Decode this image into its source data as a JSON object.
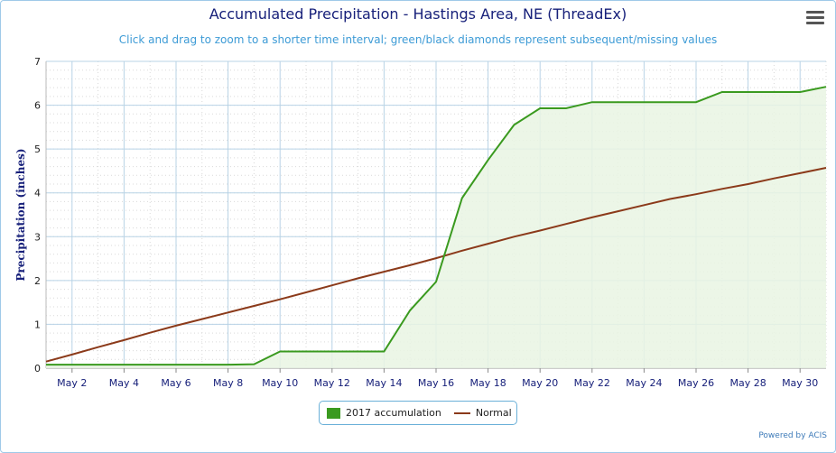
{
  "title": "Accumulated Precipitation - Hastings Area, NE (ThreadEx)",
  "subtitle": "Click and drag to zoom to a shorter time interval; green/black diamonds represent subsequent/missing values",
  "credit": "Powered by ACIS",
  "menu_icon": "hamburger-menu-icon",
  "colors": {
    "accumulation_line": "#3a9a1f",
    "accumulation_fill": "#e9f4e3",
    "normal_line": "#8b3a1a",
    "grid": "#b8d3e6",
    "axis_text": "#17207a"
  },
  "legend": [
    {
      "label": "2017 accumulation",
      "color": "#3a9a1f",
      "symbol": "box"
    },
    {
      "label": "Normal",
      "color": "#8b3a1a",
      "symbol": "line"
    }
  ],
  "chart_data": {
    "type": "line",
    "title": "Accumulated Precipitation - Hastings Area, NE (ThreadEx)",
    "ylabel": "Precipitation (inches)",
    "xlabel": "",
    "ylim": [
      0,
      7
    ],
    "xlim": [
      1,
      31
    ],
    "y_ticks": [
      "0",
      "1",
      "2",
      "3",
      "4",
      "5",
      "6",
      "7"
    ],
    "x_ticks": [
      {
        "day": 2,
        "label": "May 2"
      },
      {
        "day": 4,
        "label": "May 4"
      },
      {
        "day": 6,
        "label": "May 6"
      },
      {
        "day": 8,
        "label": "May 8"
      },
      {
        "day": 10,
        "label": "May 10"
      },
      {
        "day": 12,
        "label": "May 12"
      },
      {
        "day": 14,
        "label": "May 14"
      },
      {
        "day": 16,
        "label": "May 16"
      },
      {
        "day": 18,
        "label": "May 18"
      },
      {
        "day": 20,
        "label": "May 20"
      },
      {
        "day": 22,
        "label": "May 22"
      },
      {
        "day": 24,
        "label": "May 24"
      },
      {
        "day": 26,
        "label": "May 26"
      },
      {
        "day": 28,
        "label": "May 28"
      },
      {
        "day": 30,
        "label": "May 30"
      }
    ],
    "grid": true,
    "legend_position": "bottom-center",
    "series": [
      {
        "name": "2017 accumulation",
        "x": [
          1,
          2,
          3,
          4,
          5,
          6,
          7,
          8,
          9,
          10,
          11,
          12,
          13,
          14,
          15,
          16,
          17,
          18,
          19,
          20,
          21,
          22,
          23,
          24,
          25,
          26,
          27,
          28,
          29,
          30,
          31
        ],
        "values": [
          0.08,
          0.08,
          0.08,
          0.08,
          0.08,
          0.08,
          0.08,
          0.08,
          0.09,
          0.38,
          0.38,
          0.38,
          0.38,
          0.38,
          1.32,
          1.97,
          3.88,
          4.75,
          5.55,
          5.93,
          5.93,
          6.07,
          6.07,
          6.07,
          6.07,
          6.07,
          6.3,
          6.3,
          6.3,
          6.3,
          6.42
        ],
        "fill": true
      },
      {
        "name": "Normal",
        "x": [
          1,
          2,
          3,
          4,
          5,
          6,
          7,
          8,
          9,
          10,
          11,
          12,
          13,
          14,
          15,
          16,
          17,
          18,
          19,
          20,
          21,
          22,
          23,
          24,
          25,
          26,
          27,
          28,
          29,
          30,
          31
        ],
        "values": [
          0.15,
          0.31,
          0.48,
          0.64,
          0.81,
          0.97,
          1.12,
          1.27,
          1.42,
          1.57,
          1.73,
          1.89,
          2.05,
          2.2,
          2.35,
          2.51,
          2.68,
          2.84,
          3.0,
          3.14,
          3.29,
          3.44,
          3.58,
          3.72,
          3.86,
          3.97,
          4.09,
          4.2,
          4.33,
          4.45,
          4.57
        ]
      }
    ]
  }
}
